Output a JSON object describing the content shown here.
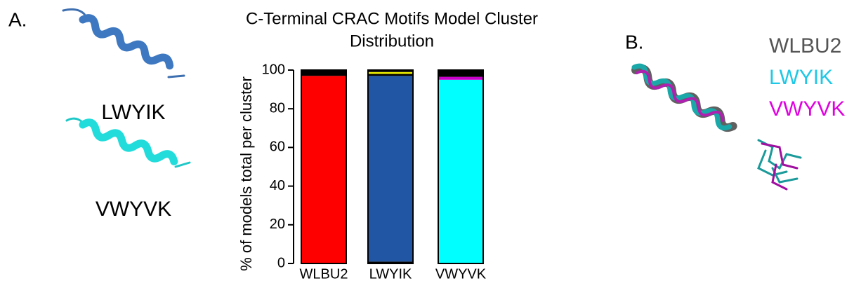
{
  "chart_data": {
    "type": "stacked-bar",
    "title": [
      "C-Terminal CRAC Motifs Model Cluster",
      "Distribution"
    ],
    "y_label": "% of models total per cluster",
    "categories": [
      "WLBU2",
      "LWYIK",
      "VWYVK"
    ],
    "series": [
      {
        "colors": [
          "#ff0000",
          "#000000",
          "#00ffff"
        ],
        "values": [
          97,
          1,
          95
        ]
      },
      {
        "colors": [
          "#000000",
          "#2156a5",
          "#cc00cc"
        ],
        "values": [
          3,
          96,
          1.5
        ]
      },
      {
        "colors": [
          "#000000",
          "#000000",
          "#000000"
        ],
        "values": [
          null,
          1,
          3.5
        ]
      },
      {
        "colors": [
          "#e8e800",
          "#e8e800",
          "#e8e800"
        ],
        "values": [
          null,
          1,
          null
        ]
      },
      {
        "colors": [
          "#000000",
          "#000000",
          "#000000"
        ],
        "values": [
          null,
          1,
          null
        ]
      }
    ],
    "ylim": [
      0,
      100
    ],
    "yticks": [
      0,
      20,
      40,
      60,
      80,
      100
    ]
  },
  "panels": {
    "a_label": "A.",
    "b_label": "B.",
    "a_structures": [
      "LWYIK",
      "VWYVK"
    ],
    "b_legend": [
      {
        "text": "WLBU2",
        "color": "#555555"
      },
      {
        "text": "LWYIK",
        "color": "#1ec8e6"
      },
      {
        "text": "VWYVK",
        "color": "#e000e0"
      }
    ]
  }
}
